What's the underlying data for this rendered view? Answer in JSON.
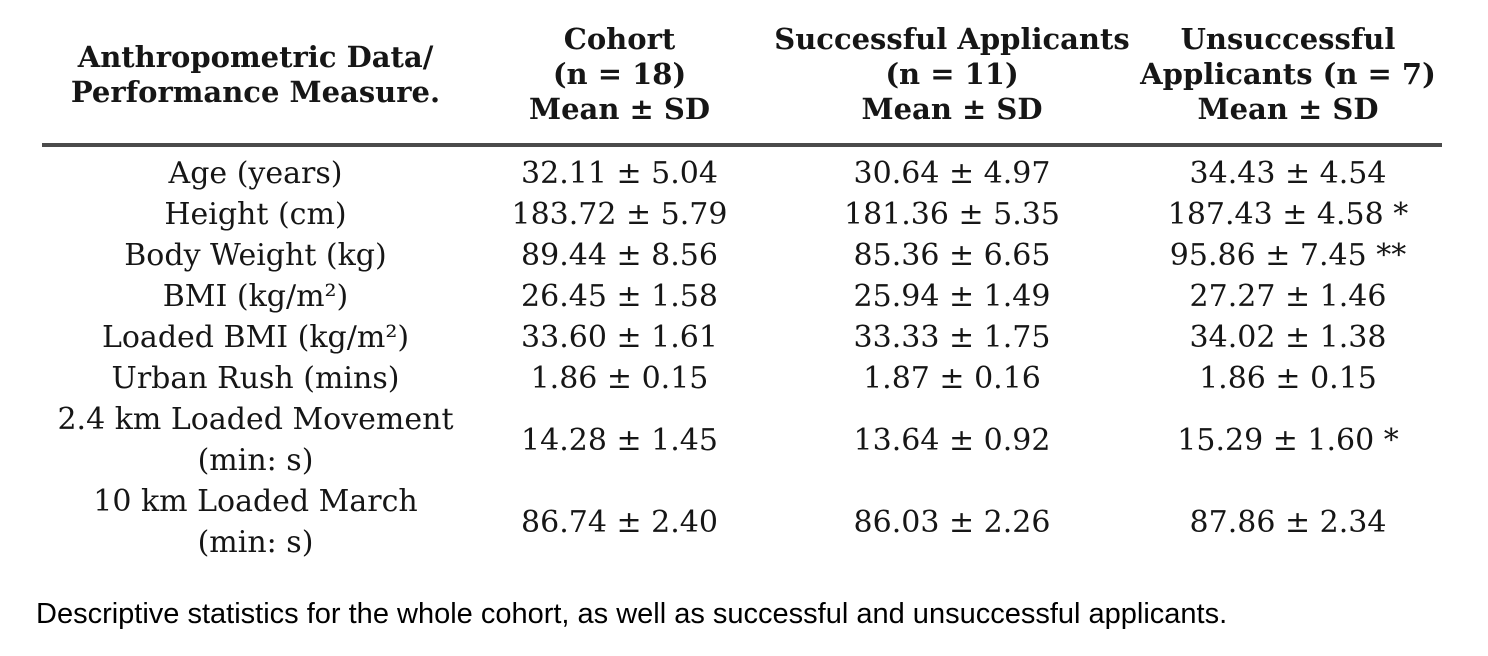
{
  "table": {
    "headers": {
      "measure": "Anthropometric Data/\nPerformance Measure.",
      "cohort": "Cohort\n(n = 18)\nMean ± SD",
      "successful": "Successful Applicants\n(n = 11)\nMean ± SD",
      "unsuccessful": "Unsuccessful\nApplicants (n = 7)\nMean ± SD"
    },
    "rows": [
      {
        "label": "Age (years)",
        "cohort": "32.11 ± 5.04",
        "successful": "30.64 ± 4.97",
        "unsuccessful": "34.43 ± 4.54"
      },
      {
        "label": "Height (cm)",
        "cohort": "183.72 ± 5.79",
        "successful": "181.36 ± 5.35",
        "unsuccessful": "187.43 ± 4.58 *"
      },
      {
        "label": "Body Weight (kg)",
        "cohort": "89.44 ± 8.56",
        "successful": "85.36 ± 6.65",
        "unsuccessful": "95.86 ± 7.45 **"
      },
      {
        "label": "BMI (kg/m²)",
        "cohort": "26.45 ± 1.58",
        "successful": "25.94 ± 1.49",
        "unsuccessful": "27.27 ± 1.46"
      },
      {
        "label": "Loaded BMI (kg/m²)",
        "cohort": "33.60 ± 1.61",
        "successful": "33.33 ± 1.75",
        "unsuccessful": "34.02 ± 1.38"
      },
      {
        "label": "Urban Rush (mins)",
        "cohort": "1.86 ± 0.15",
        "successful": "1.87 ± 0.16",
        "unsuccessful": "1.86 ± 0.15"
      },
      {
        "label": "2.4 km Loaded Movement\n(min: s)",
        "cohort": "14.28 ± 1.45",
        "successful": "13.64 ± 0.92",
        "unsuccessful": "15.29 ± 1.60 *"
      },
      {
        "label": "10 km Loaded March\n(min: s)",
        "cohort": "86.74 ± 2.40",
        "successful": "86.03 ± 2.26",
        "unsuccessful": "87.86 ± 2.34"
      }
    ]
  },
  "caption": "Descriptive statistics for the whole cohort, as well as successful and unsuccessful applicants."
}
